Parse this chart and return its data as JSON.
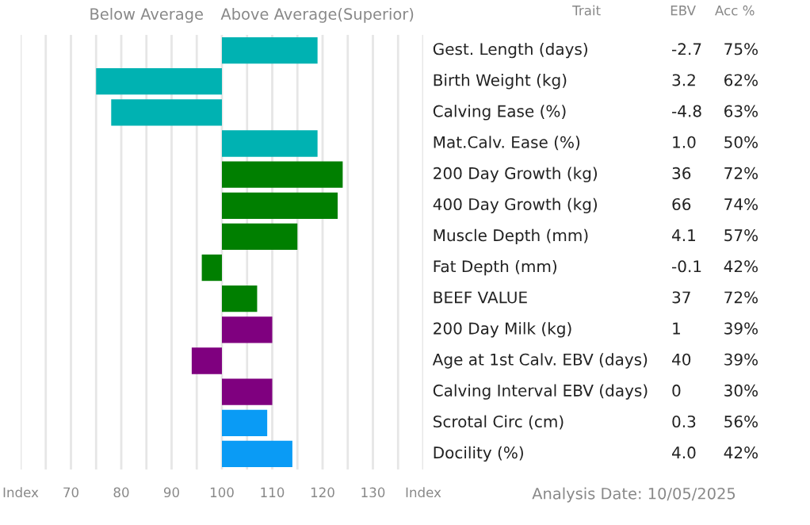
{
  "chart_data": [
    {
      "type": "bar",
      "orientation": "horizontal",
      "categories": [
        null,
        null,
        null,
        null,
        null,
        null,
        null,
        null,
        null,
        null,
        null,
        null,
        null,
        null
      ],
      "base": [
        100,
        100,
        100,
        100,
        100,
        100,
        100,
        100,
        100,
        100,
        100,
        100,
        100,
        100
      ],
      "values": [
        19,
        -25,
        -22,
        19,
        24,
        23,
        15,
        -4,
        7,
        10,
        -6,
        10,
        9,
        14
      ],
      "colors": [
        "#00b2b2",
        "#00b2b2",
        "#00b2b2",
        "#00b2b2",
        "#007f00",
        "#007f00",
        "#007f00",
        "#007f00",
        "#007f00",
        "#7f007f",
        "#7f007f",
        "#7f007f",
        "#0a9bf5",
        "#0a9bf5"
      ],
      "xlim": [
        60,
        140
      ],
      "xticks": [
        {
          "value": 60,
          "label": "Index"
        },
        {
          "value": 65,
          "label": null
        },
        70,
        {
          "value": 75,
          "label": null
        },
        80,
        {
          "value": 85,
          "label": null
        },
        90,
        {
          "value": 95,
          "label": null
        },
        100,
        {
          "value": 105,
          "label": null
        },
        110,
        {
          "value": 115,
          "label": null
        },
        120,
        {
          "value": 125,
          "label": null
        },
        130,
        {
          "value": 135,
          "label": null
        },
        {
          "value": 140,
          "label": "Index"
        }
      ],
      "grid": "x",
      "annotations": [
        "Below Average",
        "Above Average(Superior)"
      ]
    },
    {
      "type": "other",
      "categories": [
        "Gest. Length (days)",
        "Birth Weight (kg)",
        "Calving Ease (%)",
        "Mat.Calv. Ease (%)",
        "200 Day Growth (kg)",
        "400 Day Growth (kg)",
        "Muscle Depth (mm)",
        "Fat Depth (mm)",
        "BEEF VALUE",
        "200 Day Milk (kg)",
        "Age at 1st Calv. EBV (days)",
        "Calving Interval EBV (days)",
        "Scrotal Circ (cm)",
        "Docility (%)"
      ],
      "series": [
        {
          "name": "EBV",
          "values": [
            -2.7,
            3.2,
            -4.8,
            1.0,
            36,
            66,
            4.1,
            -0.1,
            37,
            1,
            40,
            0,
            0.3,
            4.0
          ],
          "value_labels": [
            "-2.7",
            "3.2",
            "-4.8",
            "1.0",
            "36",
            "66",
            "4.1",
            "-0.1",
            "37",
            "1",
            "40",
            "0",
            "0.3",
            "4.0"
          ]
        },
        {
          "name": "Acc %",
          "values": [
            75,
            62,
            63,
            50,
            72,
            74,
            57,
            42,
            72,
            39,
            39,
            30,
            56,
            42
          ],
          "value_labels": [
            "75%",
            "62%",
            "63%",
            "50%",
            "72%",
            "74%",
            "57%",
            "42%",
            "72%",
            "39%",
            "39%",
            "30%",
            "56%",
            "42%"
          ]
        }
      ],
      "annotations": [
        "Trait",
        "Analysis Date: 10/05/2025"
      ]
    }
  ]
}
